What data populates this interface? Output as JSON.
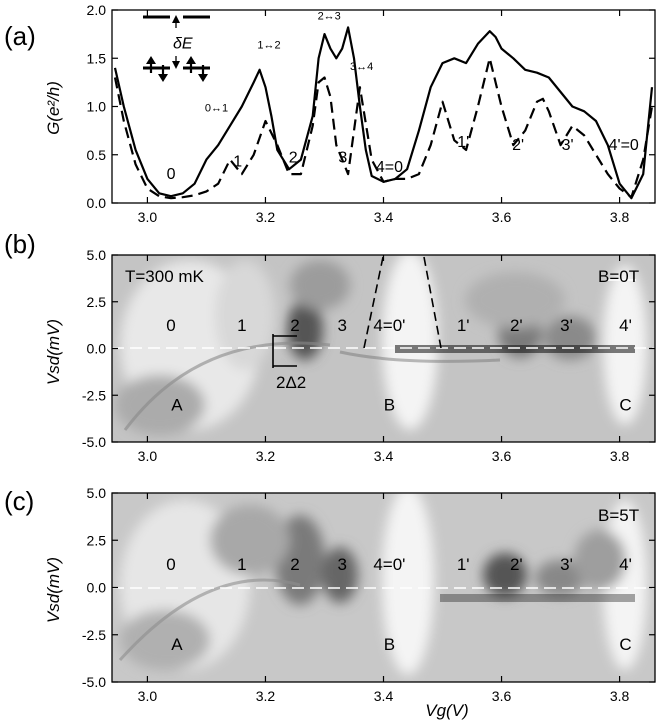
{
  "chart_data": [
    {
      "type": "line",
      "panel": "(a)",
      "ylabel": "G(e²/h)",
      "xlim": [
        2.94,
        3.86
      ],
      "ylim": [
        0.0,
        2.0
      ],
      "xticks": [
        "3.0",
        "3.2",
        "3.4",
        "3.6",
        "3.8"
      ],
      "yticks": [
        "0.0",
        "0.5",
        "1.0",
        "1.5",
        "2.0"
      ],
      "series": [
        {
          "style": "solid",
          "x": [
            2.945,
            2.96,
            2.98,
            3.0,
            3.02,
            3.04,
            3.06,
            3.08,
            3.1,
            3.12,
            3.14,
            3.16,
            3.18,
            3.19,
            3.2,
            3.21,
            3.22,
            3.24,
            3.26,
            3.28,
            3.29,
            3.3,
            3.31,
            3.32,
            3.33,
            3.34,
            3.35,
            3.36,
            3.37,
            3.38,
            3.4,
            3.42,
            3.44,
            3.46,
            3.48,
            3.5,
            3.52,
            3.54,
            3.56,
            3.58,
            3.59,
            3.6,
            3.62,
            3.64,
            3.66,
            3.68,
            3.7,
            3.72,
            3.74,
            3.76,
            3.78,
            3.8,
            3.82,
            3.84,
            3.855
          ],
          "y": [
            1.4,
            1.0,
            0.55,
            0.25,
            0.1,
            0.07,
            0.1,
            0.2,
            0.45,
            0.6,
            0.8,
            1.0,
            1.25,
            1.38,
            1.2,
            0.9,
            0.55,
            0.35,
            0.45,
            0.9,
            1.5,
            1.75,
            1.6,
            1.5,
            1.6,
            1.82,
            1.5,
            1.0,
            0.55,
            0.28,
            0.22,
            0.25,
            0.35,
            0.75,
            1.2,
            1.45,
            1.5,
            1.45,
            1.65,
            1.78,
            1.72,
            1.6,
            1.5,
            1.38,
            1.35,
            1.3,
            1.15,
            1.0,
            0.95,
            0.85,
            0.6,
            0.2,
            0.05,
            0.3,
            1.2
          ]
        },
        {
          "style": "dashed",
          "x": [
            2.945,
            2.96,
            2.98,
            3.0,
            3.02,
            3.04,
            3.06,
            3.08,
            3.1,
            3.12,
            3.14,
            3.16,
            3.18,
            3.2,
            3.22,
            3.24,
            3.26,
            3.28,
            3.29,
            3.3,
            3.31,
            3.32,
            3.34,
            3.36,
            3.38,
            3.4,
            3.42,
            3.44,
            3.46,
            3.48,
            3.5,
            3.52,
            3.54,
            3.56,
            3.58,
            3.6,
            3.62,
            3.64,
            3.66,
            3.67,
            3.68,
            3.7,
            3.72,
            3.74,
            3.76,
            3.78,
            3.8,
            3.82,
            3.84,
            3.855
          ],
          "y": [
            1.3,
            0.85,
            0.4,
            0.15,
            0.07,
            0.05,
            0.06,
            0.08,
            0.12,
            0.2,
            0.45,
            0.3,
            0.5,
            0.85,
            0.6,
            0.3,
            0.3,
            0.8,
            1.25,
            1.3,
            1.1,
            0.6,
            0.3,
            1.2,
            0.45,
            0.22,
            0.25,
            0.25,
            0.3,
            0.6,
            1.05,
            0.65,
            0.55,
            1.0,
            1.5,
            1.0,
            0.6,
            0.75,
            1.05,
            1.08,
            0.95,
            0.6,
            0.8,
            0.7,
            0.5,
            0.3,
            0.15,
            0.06,
            0.45,
            1.0
          ]
        }
      ],
      "annotations": [
        {
          "text": "0",
          "x": 3.04,
          "y": 0.25
        },
        {
          "text": "1",
          "x": 3.153,
          "y": 0.38
        },
        {
          "text": "2",
          "x": 3.247,
          "y": 0.42
        },
        {
          "text": "3",
          "x": 3.331,
          "y": 0.42
        },
        {
          "text": "4=0",
          "x": 3.41,
          "y": 0.32
        },
        {
          "text": "1'",
          "x": 3.535,
          "y": 0.58
        },
        {
          "text": "2'",
          "x": 3.628,
          "y": 0.55
        },
        {
          "text": "3'",
          "x": 3.712,
          "y": 0.55
        },
        {
          "text": "4'=0",
          "x": 3.807,
          "y": 0.55
        },
        {
          "text": "0↔1",
          "x": 3.117,
          "y": 0.95
        },
        {
          "text": "1↔2",
          "x": 3.206,
          "y": 1.6
        },
        {
          "text": "2↔3",
          "x": 3.308,
          "y": 1.9
        },
        {
          "text": "3↔4",
          "x": 3.363,
          "y": 1.38
        },
        {
          "text": "δE",
          "x": 3.06,
          "y": 1.6
        }
      ]
    },
    {
      "type": "heatmap",
      "panel": "(b)",
      "ylabel": "Vsd(mV)",
      "xlim": [
        2.94,
        3.86
      ],
      "ylim": [
        -5.0,
        5.0
      ],
      "xticks": [
        "3.0",
        "3.2",
        "3.4",
        "3.6",
        "3.8"
      ],
      "yticks": [
        "5.0",
        "2.5",
        "0.0",
        "-2.5",
        "-5.0"
      ],
      "corner_labels": {
        "temperature": "T=300 mK",
        "field": "B=0T"
      },
      "state_labels": [
        "0",
        "1",
        "2",
        "3",
        "4=0'",
        "1'",
        "2'",
        "3'",
        "4'"
      ],
      "region_labels": [
        "A",
        "B",
        "C"
      ],
      "gap_label": "2Δ2"
    },
    {
      "type": "heatmap",
      "panel": "(c)",
      "ylabel": "Vsd(mV)",
      "xlabel": "Vg(V)",
      "xlim": [
        2.94,
        3.86
      ],
      "ylim": [
        -5.0,
        5.0
      ],
      "xticks": [
        "3.0",
        "3.2",
        "3.4",
        "3.6",
        "3.8"
      ],
      "yticks": [
        "5.0",
        "2.5",
        "0.0",
        "-2.5",
        "-5.0"
      ],
      "corner_labels": {
        "field": "B=5T"
      },
      "state_labels": [
        "0",
        "1",
        "2",
        "3",
        "4=0'",
        "1'",
        "2'",
        "3'",
        "4'"
      ],
      "region_labels": [
        "A",
        "B",
        "C"
      ]
    }
  ]
}
